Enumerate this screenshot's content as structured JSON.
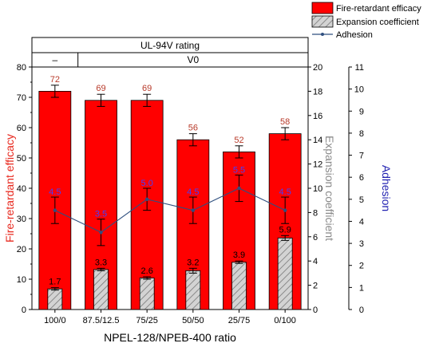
{
  "chart_data": {
    "type": "bar",
    "categories": [
      "100/0",
      "87.5/12.5",
      "75/25",
      "50/50",
      "25/75",
      "0/100"
    ],
    "xlabel": "NPEL-128/NPEB-400 ratio",
    "ylabel": "Fire-retardant efficacy",
    "ylabel2": "Expansion coefficient",
    "ylabel3": "Adhesion",
    "ylim": [
      0,
      80
    ],
    "ylim2": [
      0,
      20
    ],
    "ylim3": [
      0,
      11
    ],
    "yticks": [
      "0",
      "10",
      "20",
      "30",
      "40",
      "50",
      "60",
      "70",
      "80"
    ],
    "yticks2": [
      "0",
      "2",
      "4",
      "6",
      "8",
      "10",
      "12",
      "14",
      "16",
      "18",
      "20"
    ],
    "yticks3": [
      "0",
      "1",
      "2",
      "3",
      "4",
      "5",
      "6",
      "7",
      "8",
      "9",
      "10",
      "11"
    ],
    "rating_header": "UL-94V rating",
    "rating_cells": [
      {
        "label": "–",
        "span": [
          0,
          0
        ]
      },
      {
        "label": "V0",
        "span": [
          1,
          5
        ]
      }
    ],
    "series": [
      {
        "name": "Fire-retardant efficacy",
        "axis": "left",
        "color": "#ff0000",
        "values": [
          72,
          69,
          69,
          56,
          52,
          58
        ],
        "errors": [
          2,
          2,
          2,
          2,
          2,
          2
        ],
        "labels": [
          "72",
          "69",
          "69",
          "56",
          "52",
          "58"
        ]
      },
      {
        "name": "Expansion coefficient",
        "axis": "right",
        "color": "#d3d3d3",
        "values": [
          1.7,
          3.3,
          2.6,
          3.2,
          3.9,
          5.9
        ],
        "errors": [
          0.1,
          0.1,
          0.1,
          0.2,
          0.1,
          0.2
        ],
        "labels": [
          "1.7",
          "3.3",
          "2.6",
          "3.2",
          "3.9",
          "5.9"
        ]
      },
      {
        "name": "Adhesion",
        "axis": "right2",
        "color": "#2f4f7f",
        "label_color": "#4040ff",
        "values": [
          4.5,
          3.5,
          5.0,
          4.5,
          5.5,
          4.5
        ],
        "errors": [
          0.6,
          0.6,
          0.5,
          0.6,
          0.6,
          0.6
        ],
        "labels": [
          "4.5",
          "3.5",
          "5.0",
          "4.5",
          "5.5",
          "4.5"
        ]
      }
    ]
  }
}
